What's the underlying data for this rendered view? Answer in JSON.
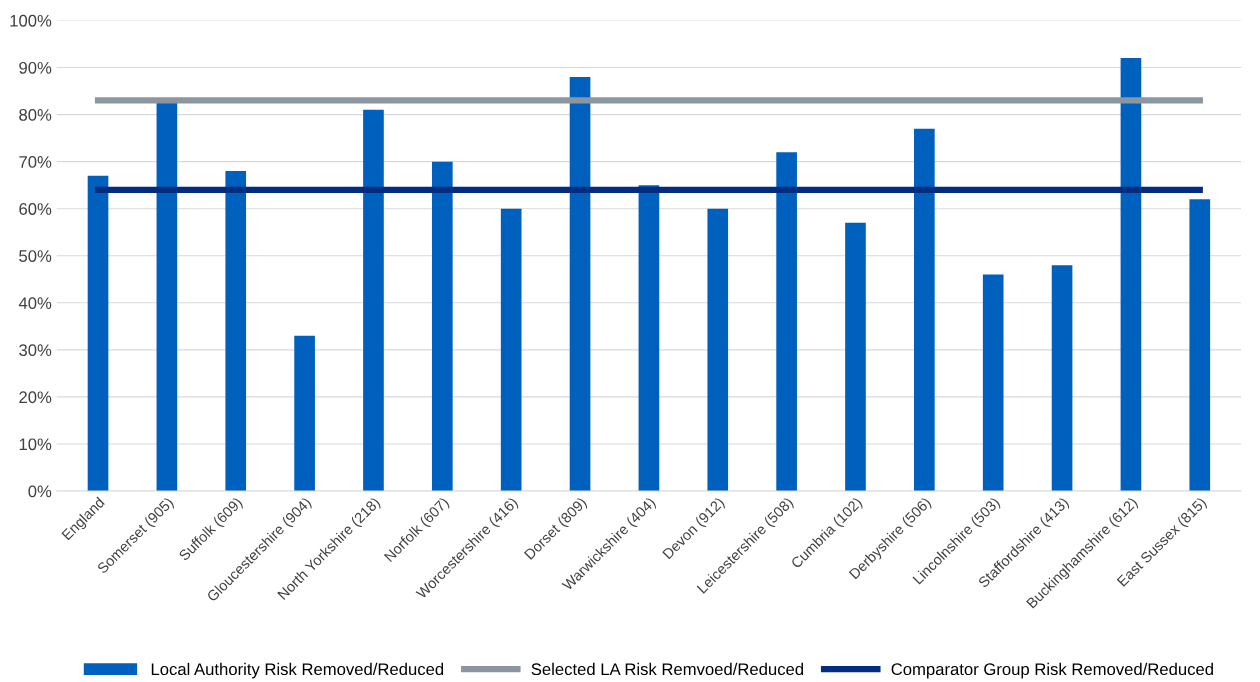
{
  "chart_data": {
    "type": "bar",
    "categories": [
      "England",
      "Somerset (905)",
      "Suffolk (609)",
      "Gloucestershire (904)",
      "North Yorkshire (218)",
      "Norfolk (607)",
      "Worcestershire (416)",
      "Dorset (809)",
      "Warwickshire (404)",
      "Devon (912)",
      "Leicestershire (508)",
      "Cumbria (102)",
      "Derbyshire (506)",
      "Lincolnshire (503)",
      "Staffordshire (413)",
      "Buckinghamshire (612)",
      "East Sussex (815)"
    ],
    "series": [
      {
        "name": "Local Authority Risk Removed/Reduced",
        "color": "#0060bd",
        "values": [
          67,
          83,
          68,
          33,
          81,
          70,
          60,
          88,
          65,
          60,
          72,
          57,
          77,
          46,
          48,
          92,
          62
        ]
      },
      {
        "name": "Selected LA Risk Remvoed/Reduced",
        "type": "line",
        "color": "#8c96a0",
        "values": [
          83,
          83,
          83,
          83,
          83,
          83,
          83,
          83,
          83,
          83,
          83,
          83,
          83,
          83,
          83,
          83,
          83
        ]
      },
      {
        "name": "Comparator Group Risk Removed/Reduced",
        "type": "line",
        "color": "#002d80",
        "values": [
          64,
          64,
          64,
          64,
          64,
          64,
          64,
          64,
          64,
          64,
          64,
          64,
          64,
          64,
          64,
          64,
          64
        ]
      }
    ],
    "ylim": [
      0,
      100
    ],
    "yticks": [
      {
        "value": 0,
        "label": "0%"
      },
      {
        "value": 10,
        "label": "10%"
      },
      {
        "value": 20,
        "label": "20%"
      },
      {
        "value": 30,
        "label": "30%"
      },
      {
        "value": 40,
        "label": "40%"
      },
      {
        "value": 50,
        "label": "50%"
      },
      {
        "value": 60,
        "label": "60%"
      },
      {
        "value": 70,
        "label": "70%"
      },
      {
        "value": 80,
        "label": "80%"
      },
      {
        "value": 90,
        "label": "90%"
      },
      {
        "value": 100,
        "label": "100%"
      }
    ],
    "grid": "y",
    "legend": "bottom",
    "marker": "none",
    "line_style": "solid"
  }
}
